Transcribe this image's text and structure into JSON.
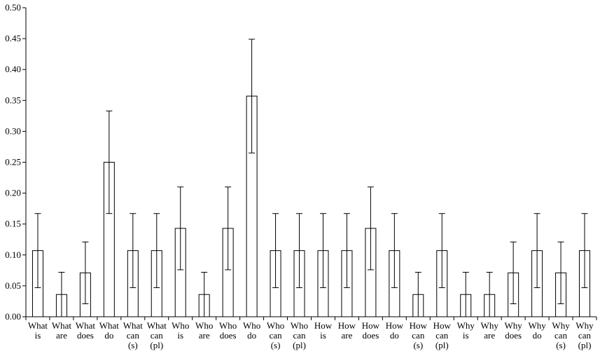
{
  "chart_data": {
    "type": "bar",
    "title": "",
    "xlabel": "",
    "ylabel": "",
    "ylim": [
      0,
      0.5
    ],
    "yticks": [
      "0.00",
      "0.05",
      "0.10",
      "0.15",
      "0.20",
      "0.25",
      "0.30",
      "0.35",
      "0.40",
      "0.45",
      "0.50"
    ],
    "grid": false,
    "bar_fill": "#ffffff",
    "bar_stroke": "#000000",
    "categories": [
      [
        "What",
        "is"
      ],
      [
        "What",
        "are"
      ],
      [
        "What",
        "does"
      ],
      [
        "What",
        "do"
      ],
      [
        "What",
        "can",
        "(s)"
      ],
      [
        "What",
        "can",
        "(pl)"
      ],
      [
        "Who",
        "is"
      ],
      [
        "Who",
        "are"
      ],
      [
        "Who",
        "does"
      ],
      [
        "Who",
        "do"
      ],
      [
        "Who",
        "can",
        "(s)"
      ],
      [
        "Who",
        "can",
        "(pl)"
      ],
      [
        "How",
        "is"
      ],
      [
        "How",
        "are"
      ],
      [
        "How",
        "does"
      ],
      [
        "How",
        "do"
      ],
      [
        "How",
        "can",
        "(s)"
      ],
      [
        "How",
        "can",
        "(pl)"
      ],
      [
        "Why",
        "is"
      ],
      [
        "Why",
        "are"
      ],
      [
        "Why",
        "does"
      ],
      [
        "Why",
        "do"
      ],
      [
        "Why",
        "can",
        "(s)"
      ],
      [
        "Why",
        "can",
        "(pl)"
      ]
    ],
    "values": [
      0.107,
      0.036,
      0.071,
      0.25,
      0.107,
      0.107,
      0.143,
      0.036,
      0.143,
      0.357,
      0.107,
      0.107,
      0.107,
      0.107,
      0.143,
      0.107,
      0.036,
      0.107,
      0.036,
      0.036,
      0.071,
      0.107,
      0.071,
      0.107
    ],
    "error_low": [
      0.047,
      0.0,
      0.021,
      0.167,
      0.047,
      0.047,
      0.076,
      0.0,
      0.076,
      0.265,
      0.047,
      0.047,
      0.047,
      0.047,
      0.076,
      0.047,
      0.0,
      0.047,
      0.0,
      0.0,
      0.021,
      0.047,
      0.021,
      0.047
    ],
    "error_high": [
      0.167,
      0.072,
      0.121,
      0.333,
      0.167,
      0.167,
      0.21,
      0.072,
      0.21,
      0.449,
      0.167,
      0.167,
      0.167,
      0.167,
      0.21,
      0.167,
      0.072,
      0.167,
      0.072,
      0.072,
      0.121,
      0.167,
      0.121,
      0.167
    ]
  }
}
